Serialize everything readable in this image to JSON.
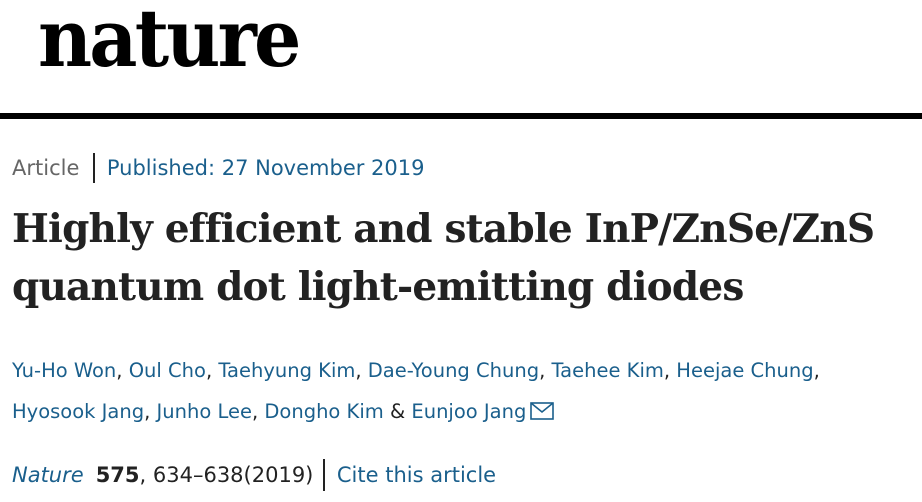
{
  "header": {
    "logo": "nature"
  },
  "article": {
    "type": "Article",
    "published": "Published: 27 November 2019",
    "title": "Highly efficient and stable InP/ZnSe/ZnS quantum dot light-emitting diodes"
  },
  "authors": [
    "Yu-Ho Won",
    "Oul Cho",
    "Taehyung Kim",
    "Dae-Young Chung",
    "Taehee Kim",
    "Heejae Chung",
    "Hyosook Jang",
    "Junho Lee",
    "Dongho Kim",
    "Eunjoo Jang"
  ],
  "author_separators": {
    "comma": ",",
    "and": "&"
  },
  "citation": {
    "journal": "Nature",
    "volume": "575",
    "pages": ", 634–638",
    "year": "(2019)",
    "cite_link": "Cite this article"
  },
  "icons": {
    "corresponding_author": "envelope-icon"
  },
  "colors": {
    "link": "#1a5f8c",
    "text": "#222222",
    "muted": "#666666",
    "rule": "#000000"
  }
}
